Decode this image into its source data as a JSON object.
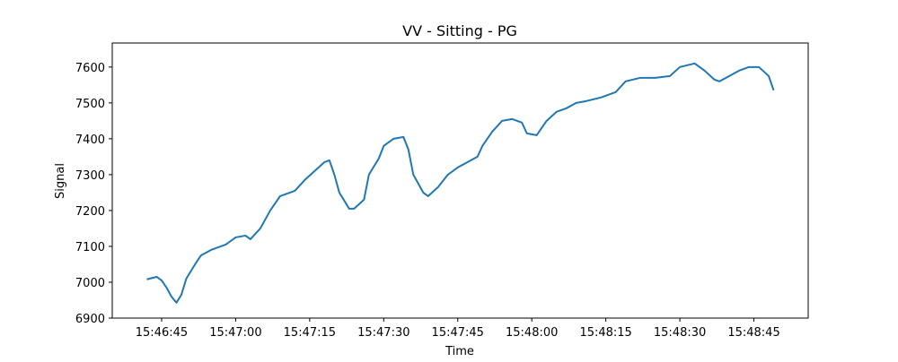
{
  "chart_data": {
    "type": "line",
    "title": "VV - Sitting - PG",
    "xlabel": "Time",
    "ylabel": "Signal",
    "x": [
      "15:46:42",
      "15:46:44",
      "15:46:45",
      "15:46:46",
      "15:46:47",
      "15:46:48",
      "15:46:49",
      "15:46:50",
      "15:46:52",
      "15:46:53",
      "15:46:55",
      "15:46:58",
      "15:47:00",
      "15:47:02",
      "15:47:03",
      "15:47:05",
      "15:47:07",
      "15:47:09",
      "15:47:11",
      "15:47:12",
      "15:47:14",
      "15:47:16",
      "15:47:18",
      "15:47:19",
      "15:47:20",
      "15:47:21",
      "15:47:23",
      "15:47:24",
      "15:47:26",
      "15:47:27",
      "15:47:29",
      "15:47:30",
      "15:47:32",
      "15:47:34",
      "15:47:35",
      "15:47:36",
      "15:47:38",
      "15:47:39",
      "15:47:41",
      "15:47:43",
      "15:47:45",
      "15:47:47",
      "15:47:49",
      "15:47:50",
      "15:47:52",
      "15:47:54",
      "15:47:56",
      "15:47:58",
      "15:47:59",
      "15:48:01",
      "15:48:03",
      "15:48:05",
      "15:48:07",
      "15:48:09",
      "15:48:11",
      "15:48:14",
      "15:48:17",
      "15:48:19",
      "15:48:22",
      "15:48:25",
      "15:48:28",
      "15:48:30",
      "15:48:33",
      "15:48:35",
      "15:48:37",
      "15:48:38",
      "15:48:40",
      "15:48:42",
      "15:48:44",
      "15:48:46",
      "15:48:48",
      "15:48:49"
    ],
    "series": [
      {
        "name": "Signal",
        "color": "#1f77b4",
        "values": [
          7008,
          7015,
          7005,
          6985,
          6960,
          6943,
          6965,
          7010,
          7055,
          7075,
          7090,
          7105,
          7125,
          7130,
          7120,
          7150,
          7200,
          7240,
          7250,
          7255,
          7285,
          7310,
          7335,
          7340,
          7300,
          7250,
          7205,
          7205,
          7230,
          7300,
          7345,
          7380,
          7400,
          7405,
          7370,
          7300,
          7250,
          7240,
          7265,
          7300,
          7320,
          7335,
          7350,
          7380,
          7420,
          7450,
          7455,
          7445,
          7415,
          7410,
          7450,
          7475,
          7485,
          7500,
          7505,
          7515,
          7530,
          7560,
          7570,
          7570,
          7575,
          7600,
          7610,
          7590,
          7565,
          7560,
          7575,
          7590,
          7600,
          7600,
          7575,
          7535
        ]
      }
    ],
    "xlim": [
      "15:46:35",
      "15:48:56"
    ],
    "xticks": [
      "15:46:45",
      "15:47:00",
      "15:47:15",
      "15:47:30",
      "15:47:45",
      "15:48:00",
      "15:48:15",
      "15:48:30",
      "15:48:45"
    ],
    "ylim": [
      6900,
      7667
    ],
    "yticks": [
      6900,
      7000,
      7100,
      7200,
      7300,
      7400,
      7500,
      7600
    ]
  }
}
